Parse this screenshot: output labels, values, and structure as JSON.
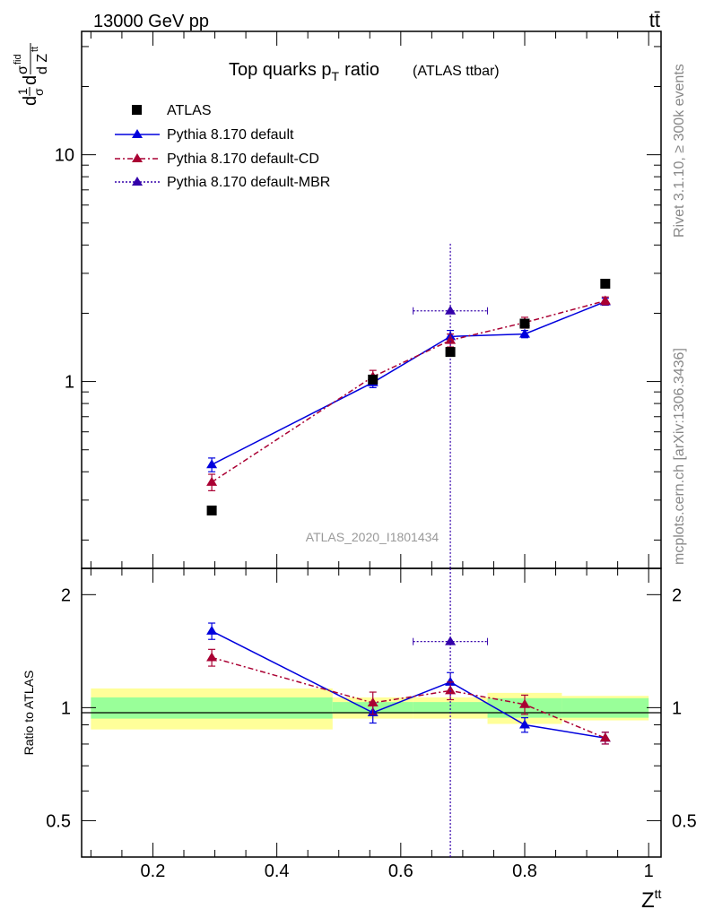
{
  "header": {
    "energy_label": "13000 GeV pp",
    "process_label": "tt̄"
  },
  "side_labels": {
    "rivet": "Rivet 3.1.10, ≥ 300k events",
    "source": "mcplots.cern.ch [arXiv:1306.3436]"
  },
  "chart_data": {
    "type": "line",
    "title": "Top quarks p",
    "title_subscript": "T",
    "title_suffix": "ratio",
    "title_note": "(ATLAS ttbar)",
    "analysis_id": "ATLAS_2020_I1801434",
    "main_panel": {
      "ylabel_prefix": "d",
      "ylabel_frac_num": "1",
      "ylabel_frac_den": "σ",
      "ylabel_d": "d",
      "ylabel_sigma": "σ",
      "ylabel_sup": "fid",
      "ylabel_den": "d Z",
      "ylabel_den_sup": "tt",
      "yscale": "log",
      "ylim": [
        0.15,
        35
      ],
      "yticks": [
        {
          "value": 1,
          "label": "1"
        },
        {
          "value": 10,
          "label": "10"
        }
      ]
    },
    "ratio_panel": {
      "ylabel": "Ratio to ATLAS",
      "yscale": "log",
      "ylim": [
        0.4,
        2.35
      ],
      "yticks": [
        {
          "value": 0.5,
          "label": "0.5"
        },
        {
          "value": 1,
          "label": "1"
        },
        {
          "value": 2,
          "label": "2"
        }
      ]
    },
    "x": {
      "label": "Z",
      "label_sup": "tt",
      "xlim": [
        0.085,
        1.02
      ],
      "ticks": [
        {
          "value": 0.2,
          "label": "0.2"
        },
        {
          "value": 0.4,
          "label": "0.4"
        },
        {
          "value": 0.6,
          "label": "0.6"
        },
        {
          "value": 0.8,
          "label": "0.8"
        },
        {
          "value": 1,
          "label": "1"
        }
      ]
    },
    "bins": [
      {
        "lo": 0.1,
        "hi": 0.49,
        "x": 0.295
      },
      {
        "lo": 0.49,
        "hi": 0.62,
        "x": 0.555
      },
      {
        "lo": 0.62,
        "hi": 0.74,
        "x": 0.68
      },
      {
        "lo": 0.74,
        "hi": 0.86,
        "x": 0.8
      },
      {
        "lo": 0.86,
        "hi": 1.0,
        "x": 0.93
      }
    ],
    "data": {
      "name": "ATLAS",
      "values": [
        0.27,
        1.02,
        1.35,
        1.8,
        2.7
      ],
      "band_stat": [
        0.065,
        0.035,
        0.035,
        0.06,
        0.06
      ],
      "band_total": [
        0.125,
        0.065,
        0.065,
        0.095,
        0.075
      ]
    },
    "series": [
      {
        "name": "Pythia 8.170 default",
        "color": "#0000dd",
        "dash": "",
        "values": [
          0.43,
          0.99,
          1.58,
          1.62,
          2.25
        ],
        "errors": [
          0.03,
          0.05,
          0.1,
          0.06,
          0.08
        ],
        "ratio": [
          1.6,
          0.97,
          1.17,
          0.9,
          0.83
        ],
        "ratio_errors": [
          0.08,
          0.06,
          0.07,
          0.04,
          0.03
        ],
        "xerr_bins": []
      },
      {
        "name": "Pythia 8.170 default-CD",
        "color": "#aa0033",
        "dash": "6,3,2,3",
        "values": [
          0.36,
          1.05,
          1.52,
          1.82,
          2.27
        ],
        "errors": [
          0.03,
          0.07,
          0.1,
          0.1,
          0.09
        ],
        "ratio": [
          1.36,
          1.03,
          1.11,
          1.02,
          0.83
        ],
        "ratio_errors": [
          0.07,
          0.07,
          0.06,
          0.06,
          0.03
        ],
        "xerr_bins": []
      },
      {
        "name": "Pythia 8.170 default-MBR",
        "color": "#3300aa",
        "dash": "2,2",
        "values": [
          null,
          null,
          2.05,
          null,
          null
        ],
        "errors": [
          null,
          null,
          2.0,
          null,
          null
        ],
        "ratio": [
          null,
          null,
          1.5,
          null,
          null
        ],
        "ratio_errors": [
          null,
          null,
          1.45,
          null,
          null
        ],
        "xerr_bins": [
          2
        ]
      }
    ]
  }
}
